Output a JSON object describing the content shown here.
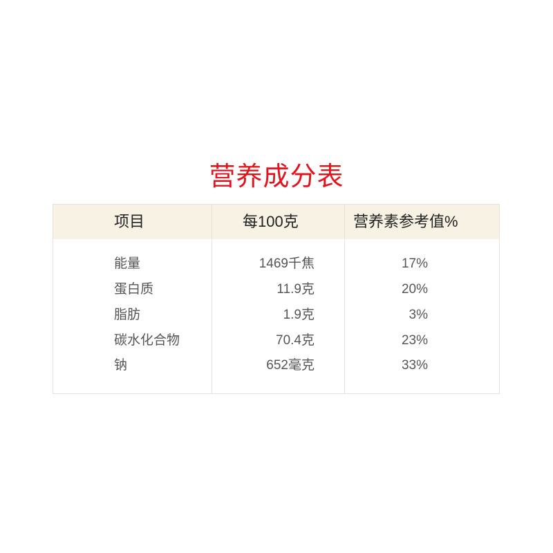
{
  "title": "营养成分表",
  "headers": [
    "项目",
    "每100克",
    "营养素参考值%"
  ],
  "rows": [
    {
      "item": "能量",
      "per100g": "1469千焦",
      "nrv": "17%"
    },
    {
      "item": "蛋白质",
      "per100g": "11.9克",
      "nrv": "20%"
    },
    {
      "item": "脂肪",
      "per100g": "1.9克",
      "nrv": "3%"
    },
    {
      "item": "碳水化合物",
      "per100g": "70.4克",
      "nrv": "23%"
    },
    {
      "item": "钠",
      "per100g": "652毫克",
      "nrv": "33%"
    }
  ],
  "colors": {
    "title": "#e3141d",
    "header_bg": "#f8f2e4"
  }
}
